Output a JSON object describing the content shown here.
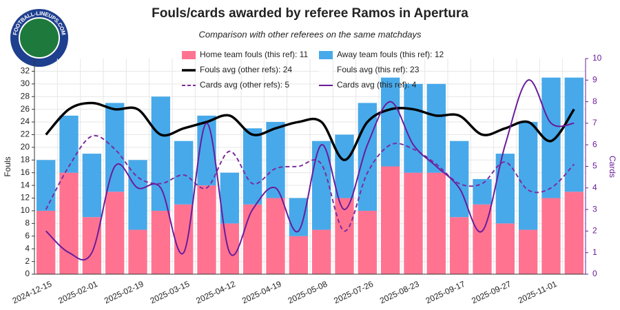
{
  "logo_text": "FOOTBALL-LINEUPS.COM",
  "chart_data": {
    "type": "bar",
    "title": "Fouls/cards awarded by referee Ramos in Apertura",
    "subtitle": "Comparison with other referees on the same matchdays",
    "y_label": "Fouls",
    "y2_label": "Cards",
    "stacked": true,
    "grid": true,
    "categories": [
      "2024-12-15",
      null,
      "2025-02-01",
      null,
      "2025-02-19",
      null,
      "2025-03-15",
      null,
      "2025-04-12",
      null,
      "2025-04-19",
      null,
      "2025-05-08",
      null,
      "2025-07-26",
      null,
      "2025-08-23",
      null,
      "2025-09-17",
      null,
      "2025-09-27",
      null,
      "2025-11-01",
      null
    ],
    "ylim": [
      0,
      34
    ],
    "yticks": [
      0,
      2,
      4,
      6,
      8,
      10,
      12,
      14,
      16,
      18,
      20,
      22,
      24,
      26,
      28,
      30,
      32
    ],
    "y2lim": [
      0,
      10
    ],
    "y2ticks": [
      0,
      1,
      2,
      3,
      4,
      5,
      6,
      7,
      8,
      9,
      10
    ],
    "y2_color": "#6a1b9a",
    "series": [
      {
        "name": "Home team fouls (this ref): 11",
        "type": "bar",
        "color": "#ff7391",
        "values": [
          10,
          16,
          9,
          13,
          7,
          10,
          11,
          14,
          8,
          11,
          12,
          6,
          7,
          12,
          10,
          17,
          16,
          16,
          9,
          11,
          8,
          7,
          12,
          13
        ]
      },
      {
        "name": "Away team fouls (this ref): 12",
        "type": "bar",
        "color": "#47a9ea",
        "values": [
          8,
          9,
          10,
          14,
          11,
          18,
          10,
          11,
          8,
          12,
          12,
          6,
          14,
          10,
          17,
          14,
          14,
          14,
          12,
          4,
          11,
          17,
          19,
          18
        ]
      },
      {
        "name": "Fouls avg (other refs): 24",
        "type": "line",
        "color": "#000000",
        "values": [
          22,
          26,
          27,
          26,
          26,
          22,
          23,
          24,
          25,
          22,
          23,
          24,
          24,
          18,
          24,
          26,
          26,
          25,
          25,
          22,
          23,
          24,
          21,
          26
        ]
      },
      {
        "name": "Fouls avg (this ref): 23",
        "type": "line",
        "color": "#ffffff"
      },
      {
        "name": "Cards avg (other refs): 5",
        "type": "line",
        "axis": "y2",
        "dashed": true,
        "color": "#7b2d9e",
        "values": [
          3,
          5,
          6.4,
          5.8,
          4.5,
          4.2,
          4.6,
          4,
          5.7,
          4.2,
          4.9,
          5,
          5.1,
          2,
          4.7,
          6,
          5.8,
          5.1,
          4.2,
          4.2,
          5.2,
          3.9,
          4,
          5.1
        ]
      },
      {
        "name": "Cards avg (this ref): 4",
        "type": "line",
        "axis": "y2",
        "color": "#6a1b9a",
        "values": [
          2,
          1,
          1,
          5,
          4,
          4,
          1,
          7,
          1,
          3,
          4,
          2,
          6,
          3,
          6,
          8,
          6,
          5,
          4,
          2,
          6,
          9,
          7,
          7
        ]
      }
    ]
  }
}
